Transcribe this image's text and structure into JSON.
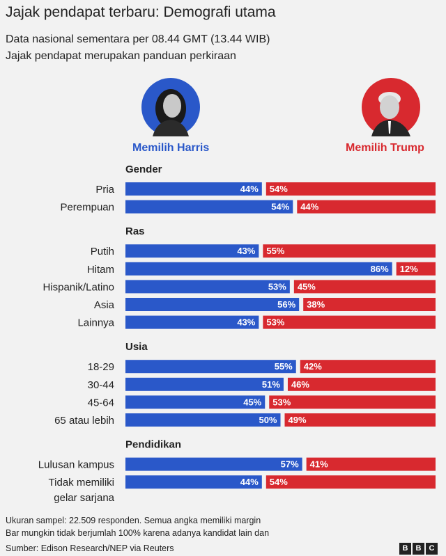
{
  "title": "Jajak pendapat terbaru: Demografi utama",
  "subtitle_1": "Data nasional sementara per 08.44 GMT (13.44 WIB)",
  "subtitle_2": "Jajak pendapat merupakan panduan perkiraan",
  "candidates": {
    "left_label": "Memilih Harris",
    "right_label": "Memilih Trump",
    "left_color": "#2a58c9",
    "right_color": "#d8292f"
  },
  "footnote_1": "Ukuran sampel: 22.509 responden. Semua angka memiliki margin",
  "footnote_2": "Bar mungkin tidak berjumlah 100% karena adanya kandidat lain dan",
  "source": "Sumber: Edison Research/NEP via Reuters",
  "logo": [
    "B",
    "B",
    "C"
  ],
  "chart_data": {
    "type": "bar",
    "orientation": "diverging-horizontal",
    "series_names": [
      "Memilih Harris",
      "Memilih Trump"
    ],
    "sections": [
      {
        "title": "Gender",
        "rows": [
          {
            "label": [
              "Pria"
            ],
            "harris": 44,
            "trump": 54
          },
          {
            "label": [
              "Perempuan"
            ],
            "harris": 54,
            "trump": 44
          }
        ]
      },
      {
        "title": "Ras",
        "rows": [
          {
            "label": [
              "Putih"
            ],
            "harris": 43,
            "trump": 55
          },
          {
            "label": [
              "Hitam"
            ],
            "harris": 86,
            "trump": 12
          },
          {
            "label": [
              "Hispanik/Latino"
            ],
            "harris": 53,
            "trump": 45
          },
          {
            "label": [
              "Asia"
            ],
            "harris": 56,
            "trump": 38
          },
          {
            "label": [
              "Lainnya"
            ],
            "harris": 43,
            "trump": 53
          }
        ]
      },
      {
        "title": "Usia",
        "rows": [
          {
            "label": [
              "18-29"
            ],
            "harris": 55,
            "trump": 42
          },
          {
            "label": [
              "30-44"
            ],
            "harris": 51,
            "trump": 46
          },
          {
            "label": [
              "45-64"
            ],
            "harris": 45,
            "trump": 53
          },
          {
            "label": [
              "65 atau lebih"
            ],
            "harris": 50,
            "trump": 49
          }
        ]
      },
      {
        "title": "Pendidikan",
        "rows": [
          {
            "label": [
              "Lulusan kampus"
            ],
            "harris": 57,
            "trump": 41
          },
          {
            "label": [
              "Tidak memiliki",
              "gelar sarjana"
            ],
            "harris": 44,
            "trump": 54
          }
        ]
      }
    ]
  }
}
